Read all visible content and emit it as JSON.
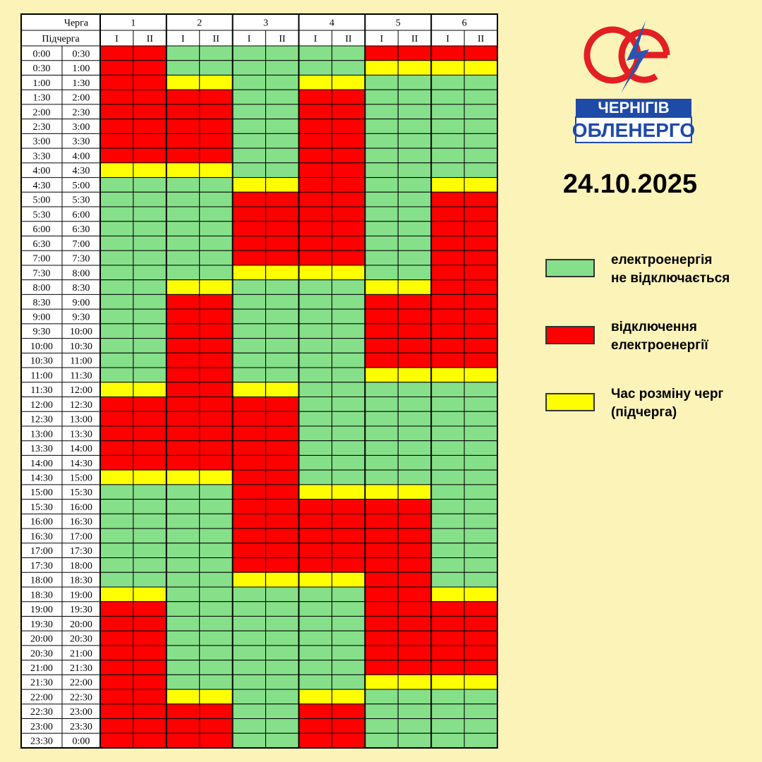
{
  "table": {
    "header_queue": "Черга",
    "header_subqueue": "Підчерга",
    "time_from": [
      "0:00",
      "0:30",
      "1:00",
      "1:30",
      "2:00",
      "2:30",
      "3:00",
      "3:30",
      "4:00",
      "4:30",
      "5:00",
      "5:30",
      "6:00",
      "6:30",
      "7:00",
      "7:30",
      "8:00",
      "8:30",
      "9:00",
      "9:30",
      "10:00",
      "10:30",
      "11:00",
      "11:30",
      "12:00",
      "12:30",
      "13:00",
      "13:30",
      "14:00",
      "14:30",
      "15:00",
      "15:30",
      "16:00",
      "16:30",
      "17:00",
      "17:30",
      "18:00",
      "18:30",
      "19:00",
      "19:30",
      "20:00",
      "20:30",
      "21:00",
      "21:30",
      "22:00",
      "22:30",
      "23:00",
      "23:30"
    ],
    "time_to": [
      "0:30",
      "1:00",
      "1:30",
      "2:00",
      "2:30",
      "3:00",
      "3:30",
      "4:00",
      "4:30",
      "5:00",
      "5:30",
      "6:00",
      "6:30",
      "7:00",
      "7:30",
      "8:00",
      "8:30",
      "9:00",
      "9:30",
      "10:00",
      "10:30",
      "11:00",
      "11:30",
      "12:00",
      "12:30",
      "13:00",
      "13:30",
      "14:00",
      "14:30",
      "15:00",
      "15:30",
      "16:00",
      "16:30",
      "17:00",
      "17:30",
      "18:00",
      "18:30",
      "19:00",
      "19:30",
      "20:00",
      "20:30",
      "21:00",
      "21:30",
      "22:00",
      "22:30",
      "23:00",
      "23:30",
      "0:00"
    ],
    "groups": [
      {
        "label": "1",
        "sub": [
          "I",
          "II"
        ],
        "states": [
          1,
          1,
          1,
          1,
          1,
          1,
          1,
          1,
          2,
          0,
          0,
          0,
          0,
          0,
          0,
          0,
          0,
          0,
          0,
          0,
          0,
          0,
          0,
          2,
          1,
          1,
          1,
          1,
          1,
          2,
          0,
          0,
          0,
          0,
          0,
          0,
          0,
          2,
          1,
          1,
          1,
          1,
          1,
          1,
          1,
          1,
          1,
          1
        ]
      },
      {
        "label": "2",
        "sub": [
          "I",
          "II"
        ],
        "states": [
          0,
          0,
          2,
          1,
          1,
          1,
          1,
          1,
          2,
          0,
          0,
          0,
          0,
          0,
          0,
          0,
          2,
          1,
          1,
          1,
          1,
          1,
          1,
          1,
          1,
          1,
          1,
          1,
          1,
          2,
          0,
          0,
          0,
          0,
          0,
          0,
          0,
          0,
          0,
          0,
          0,
          0,
          0,
          0,
          2,
          1,
          1,
          1
        ]
      },
      {
        "label": "3",
        "sub": [
          "I",
          "II"
        ],
        "states": [
          0,
          0,
          0,
          0,
          0,
          0,
          0,
          0,
          0,
          2,
          1,
          1,
          1,
          1,
          1,
          2,
          0,
          0,
          0,
          0,
          0,
          0,
          0,
          2,
          1,
          1,
          1,
          1,
          1,
          1,
          1,
          1,
          1,
          1,
          1,
          1,
          2,
          0,
          0,
          0,
          0,
          0,
          0,
          0,
          0,
          0,
          0,
          0
        ]
      },
      {
        "label": "4",
        "sub": [
          "I",
          "II"
        ],
        "states": [
          0,
          0,
          2,
          1,
          1,
          1,
          1,
          1,
          1,
          1,
          1,
          1,
          1,
          1,
          1,
          2,
          0,
          0,
          0,
          0,
          0,
          0,
          0,
          0,
          0,
          0,
          0,
          0,
          0,
          0,
          2,
          1,
          1,
          1,
          1,
          1,
          2,
          0,
          0,
          0,
          0,
          0,
          0,
          0,
          2,
          1,
          1,
          1
        ]
      },
      {
        "label": "5",
        "sub": [
          "I",
          "II"
        ],
        "states": [
          1,
          2,
          0,
          0,
          0,
          0,
          0,
          0,
          0,
          0,
          0,
          0,
          0,
          0,
          0,
          0,
          2,
          1,
          1,
          1,
          1,
          1,
          2,
          0,
          0,
          0,
          0,
          0,
          0,
          0,
          2,
          1,
          1,
          1,
          1,
          1,
          1,
          1,
          1,
          1,
          1,
          1,
          1,
          2,
          0,
          0,
          0,
          0
        ]
      },
      {
        "label": "6",
        "sub": [
          "I",
          "II"
        ],
        "states": [
          1,
          2,
          0,
          0,
          0,
          0,
          0,
          0,
          0,
          2,
          1,
          1,
          1,
          1,
          1,
          1,
          1,
          1,
          1,
          1,
          1,
          1,
          2,
          0,
          0,
          0,
          0,
          0,
          0,
          0,
          0,
          0,
          0,
          0,
          0,
          0,
          0,
          2,
          1,
          1,
          1,
          1,
          1,
          2,
          0,
          0,
          0,
          0
        ]
      }
    ]
  },
  "logo": {
    "line1": "ЧЕРНІГІВ",
    "line2": "ОБЛЕНЕРГО"
  },
  "date": "24.10.2025",
  "legend": [
    {
      "color": "#86e08a",
      "lines": [
        "електроенергія",
        "не відключається"
      ]
    },
    {
      "color": "#ff0000",
      "lines": [
        "відключення",
        "електроенергії"
      ]
    },
    {
      "color": "#ffff00",
      "lines": [
        "Час розміну черг",
        "(підчерга)"
      ]
    }
  ]
}
